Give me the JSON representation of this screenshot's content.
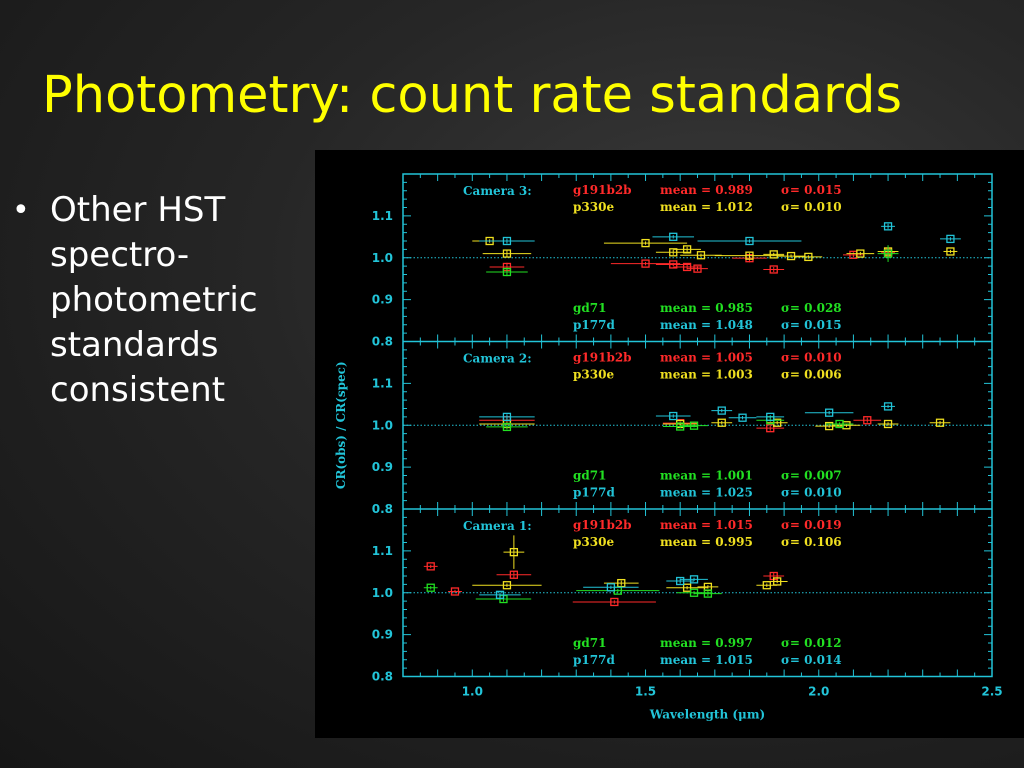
{
  "slide": {
    "title": "Photometry: count rate standards",
    "bullet_lines": [
      "Other HST",
      "spectro-",
      "photometric",
      "standards",
      "consistent"
    ],
    "bullet_glyph": "•"
  },
  "colors": {
    "title": "#ffff00",
    "axis": "#22c4d8",
    "g191b2b": "#ff2a2a",
    "p330e": "#f0e020",
    "gd71": "#22e022",
    "p177d": "#22c4d8"
  },
  "chart_data": {
    "type": "scatter",
    "xlabel": "Wavelength (μm)",
    "ylabel": "CR(obs) / CR(spec)",
    "xlim": [
      0.8,
      2.5
    ],
    "ylim": [
      0.8,
      1.2
    ],
    "x_ticks": [
      "1.0",
      "1.5",
      "2.0",
      "2.5"
    ],
    "y_ticks": [
      "0.8",
      "0.9",
      "1.0",
      "1.1"
    ],
    "reference_line": 1.0,
    "marker": "square with error bars",
    "panels": [
      {
        "name": "Camera 3:",
        "stats": [
          {
            "star": "g191b2b",
            "mean_label": "mean = 0.989",
            "sigma_label": "σ= 0.015"
          },
          {
            "star": "p330e",
            "mean_label": "mean = 1.012",
            "sigma_label": "σ= 0.010"
          },
          {
            "star": "gd71",
            "mean_label": "mean = 0.985",
            "sigma_label": "σ= 0.028"
          },
          {
            "star": "p177d",
            "mean_label": "mean = 1.048",
            "sigma_label": "σ= 0.015"
          }
        ],
        "series": [
          {
            "name": "g191b2b",
            "points": [
              [
                1.1,
                0.978,
                0.05,
                0.01
              ],
              [
                1.5,
                0.986,
                0.1,
                0.004
              ],
              [
                1.58,
                0.984,
                0.05,
                0.004
              ],
              [
                1.62,
                0.978,
                0.04,
                0.006
              ],
              [
                1.65,
                0.974,
                0.03,
                0.006
              ],
              [
                1.8,
                0.999,
                0.05,
                0.01
              ],
              [
                1.87,
                0.972,
                0.03,
                0.006
              ],
              [
                2.1,
                1.007,
                0.03,
                0.006
              ],
              [
                2.2,
                1.012,
                0.02,
                0.006
              ]
            ]
          },
          {
            "series_key": "p330e",
            "name": "p330e",
            "points": [
              [
                1.05,
                1.04,
                0.05,
                0.004
              ],
              [
                1.1,
                1.01,
                0.07,
                0.008
              ],
              [
                1.5,
                1.035,
                0.12,
                0.004
              ],
              [
                1.58,
                1.013,
                0.05,
                0.006
              ],
              [
                1.62,
                1.02,
                0.04,
                0.006
              ],
              [
                1.66,
                1.006,
                0.06,
                0.004
              ],
              [
                1.8,
                1.005,
                0.1,
                0.006
              ],
              [
                1.87,
                1.008,
                0.03,
                0.004
              ],
              [
                1.92,
                1.004,
                0.04,
                0.004
              ],
              [
                1.97,
                1.002,
                0.04,
                0.004
              ],
              [
                2.12,
                1.01,
                0.04,
                0.004
              ],
              [
                2.2,
                1.015,
                0.03,
                0.004
              ],
              [
                2.38,
                1.015,
                0.02,
                0.004
              ]
            ]
          },
          {
            "name": "gd71",
            "points": [
              [
                1.1,
                0.966,
                0.06,
                0.01
              ],
              [
                2.2,
                1.01,
                0.03,
                0.02
              ]
            ]
          },
          {
            "name": "p177d",
            "points": [
              [
                1.1,
                1.04,
                0.08,
                0.006
              ],
              [
                1.58,
                1.05,
                0.06,
                0.004
              ],
              [
                1.8,
                1.04,
                0.15,
                0.004
              ],
              [
                2.2,
                1.075,
                0.02,
                0.006
              ],
              [
                2.38,
                1.045,
                0.03,
                0.004
              ]
            ]
          }
        ]
      },
      {
        "name": "Camera 2:",
        "stats": [
          {
            "star": "g191b2b",
            "mean_label": "mean = 1.005",
            "sigma_label": "σ= 0.010"
          },
          {
            "star": "p330e",
            "mean_label": "mean = 1.003",
            "sigma_label": "σ= 0.006"
          },
          {
            "star": "gd71",
            "mean_label": "mean = 1.001",
            "sigma_label": "σ= 0.007"
          },
          {
            "star": "p177d",
            "mean_label": "mean = 1.025",
            "sigma_label": "σ= 0.010"
          }
        ],
        "series": [
          {
            "name": "g191b2b",
            "points": [
              [
                1.1,
                1.012,
                0.08,
                0.006
              ],
              [
                1.6,
                1.005,
                0.05,
                0.004
              ],
              [
                1.86,
                0.993,
                0.04,
                0.006
              ],
              [
                2.14,
                1.012,
                0.04,
                0.006
              ]
            ]
          },
          {
            "name": "p330e",
            "points": [
              [
                1.1,
                1.003,
                0.08,
                0.004
              ],
              [
                1.6,
                1.003,
                0.05,
                0.004
              ],
              [
                1.72,
                1.006,
                0.03,
                0.004
              ],
              [
                1.88,
                1.006,
                0.03,
                0.004
              ],
              [
                2.03,
                0.998,
                0.04,
                0.004
              ],
              [
                2.08,
                1.0,
                0.04,
                0.004
              ],
              [
                2.2,
                1.003,
                0.03,
                0.004
              ],
              [
                2.35,
                1.006,
                0.03,
                0.004
              ]
            ]
          },
          {
            "name": "gd71",
            "points": [
              [
                1.1,
                0.996,
                0.06,
                0.006
              ],
              [
                1.6,
                0.997,
                0.05,
                0.004
              ],
              [
                1.64,
                0.999,
                0.04,
                0.004
              ],
              [
                1.86,
                1.012,
                0.04,
                0.004
              ],
              [
                2.06,
                1.003,
                0.04,
                0.004
              ]
            ]
          },
          {
            "name": "p177d",
            "points": [
              [
                1.1,
                1.02,
                0.08,
                0.006
              ],
              [
                1.58,
                1.022,
                0.05,
                0.004
              ],
              [
                1.72,
                1.035,
                0.03,
                0.004
              ],
              [
                1.78,
                1.018,
                0.04,
                0.004
              ],
              [
                1.86,
                1.02,
                0.04,
                0.004
              ],
              [
                2.03,
                1.03,
                0.07,
                0.004
              ],
              [
                2.2,
                1.045,
                0.02,
                0.004
              ]
            ]
          }
        ]
      },
      {
        "name": "Camera 1:",
        "stats": [
          {
            "star": "g191b2b",
            "mean_label": "mean = 1.015",
            "sigma_label": "σ= 0.019"
          },
          {
            "star": "p330e",
            "mean_label": "mean = 0.995",
            "sigma_label": "σ= 0.106"
          },
          {
            "star": "gd71",
            "mean_label": "mean = 0.997",
            "sigma_label": "σ= 0.012"
          },
          {
            "star": "p177d",
            "mean_label": "mean = 1.015",
            "sigma_label": "σ= 0.014"
          }
        ],
        "series": [
          {
            "name": "g191b2b",
            "points": [
              [
                0.88,
                1.063,
                0.02,
                0.004
              ],
              [
                0.95,
                1.003,
                0.02,
                0.004
              ],
              [
                1.12,
                1.043,
                0.05,
                0.008
              ],
              [
                1.41,
                0.978,
                0.12,
                0.004
              ],
              [
                1.87,
                1.04,
                0.03,
                0.008
              ]
            ]
          },
          {
            "name": "p330e",
            "points": [
              [
                1.1,
                1.018,
                0.1,
                0.004
              ],
              [
                1.12,
                1.097,
                0.03,
                0.04
              ],
              [
                1.43,
                1.023,
                0.05,
                0.006
              ],
              [
                1.62,
                1.012,
                0.06,
                0.004
              ],
              [
                1.68,
                1.014,
                0.03,
                0.004
              ],
              [
                1.85,
                1.018,
                0.03,
                0.004
              ],
              [
                1.88,
                1.027,
                0.03,
                0.004
              ]
            ]
          },
          {
            "name": "gd71",
            "points": [
              [
                0.88,
                1.012,
                0.02,
                0.004
              ],
              [
                1.09,
                0.985,
                0.08,
                0.006
              ],
              [
                1.42,
                1.005,
                0.12,
                0.004
              ],
              [
                1.64,
                1.0,
                0.05,
                0.004
              ],
              [
                1.68,
                0.998,
                0.04,
                0.006
              ]
            ]
          },
          {
            "name": "p177d",
            "points": [
              [
                1.08,
                0.995,
                0.06,
                0.006
              ],
              [
                1.4,
                1.013,
                0.08,
                0.004
              ],
              [
                1.6,
                1.028,
                0.04,
                0.006
              ],
              [
                1.64,
                1.032,
                0.04,
                0.004
              ]
            ]
          }
        ]
      }
    ]
  }
}
